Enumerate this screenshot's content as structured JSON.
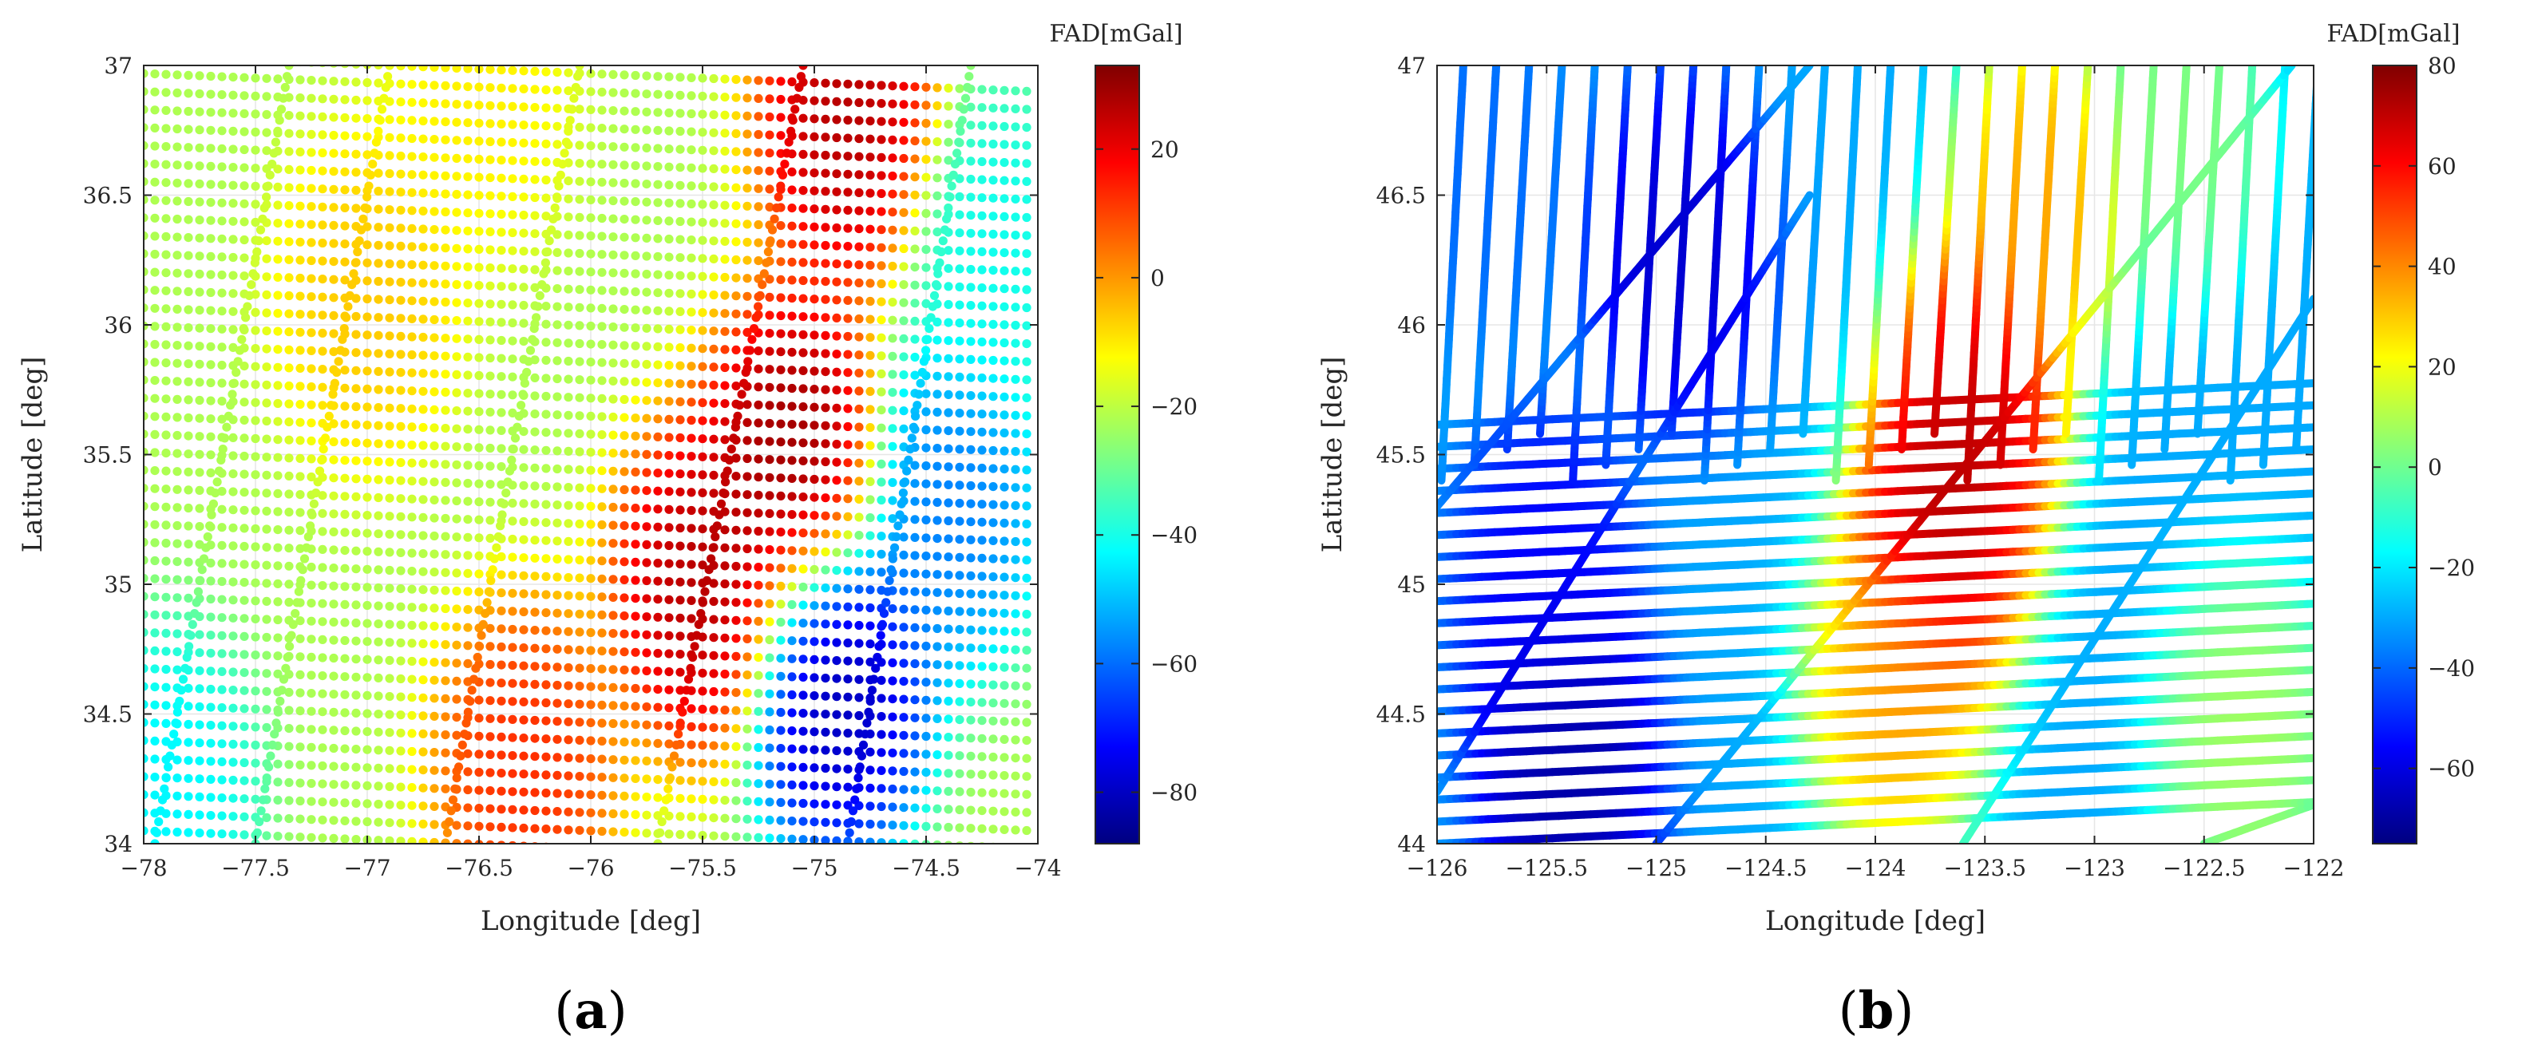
{
  "figure": {
    "panel_labels": [
      {
        "open": "(",
        "letter": "a",
        "close": ")"
      },
      {
        "open": "(",
        "letter": "b",
        "close": ")"
      }
    ]
  },
  "colormap": "jet",
  "chart_data": [
    {
      "type": "scatter",
      "panel": "a",
      "xlabel": "Longitude [deg]",
      "ylabel": "Latitude [deg]",
      "colorbar_label": "FAD[mGal]",
      "xlim": [
        -78,
        -74
      ],
      "ylim": [
        34,
        37
      ],
      "xticks": [
        -78,
        -77.5,
        -77,
        -76.5,
        -76,
        -75.5,
        -75,
        -74.5,
        -74
      ],
      "xtick_labels": [
        "−78",
        "−77.5",
        "−77",
        "−76.5",
        "−76",
        "−75.5",
        "−75",
        "−74.5",
        "−74"
      ],
      "yticks": [
        34,
        34.5,
        35,
        35.5,
        36,
        36.5,
        37
      ],
      "ytick_labels": [
        "34",
        "34.5",
        "35",
        "35.5",
        "36",
        "36.5",
        "37"
      ],
      "clim": [
        -88,
        33
      ],
      "cticks": [
        -80,
        -60,
        -40,
        -20,
        0,
        20
      ],
      "ctick_labels": [
        "−80",
        "−60",
        "−40",
        "−20",
        "0",
        "20"
      ],
      "grid": true,
      "tracks": {
        "east_west": {
          "count": 44,
          "lon_range": [
            -78,
            -74.05
          ],
          "lat_start_west": 34.05,
          "lat_step": 0.0695,
          "slope_deg_per_deg": -0.035
        },
        "north_south": [
          {
            "lon_south": -77.5,
            "lon_north": -76.9
          },
          {
            "lon_south": -76.65,
            "lon_north": -76.05
          },
          {
            "lon_south": -75.7,
            "lon_north": -75.05
          },
          {
            "lon_south": -74.85,
            "lon_north": -74.3
          },
          {
            "lon_south": -77.95,
            "lon_north": -77.35
          }
        ]
      },
      "anomalies": [
        {
          "lon": -75.1,
          "lat": 35.5,
          "value": 33
        },
        {
          "lon": -75.5,
          "lat": 35.0,
          "value": 30
        },
        {
          "lon": -74.85,
          "lat": 36.8,
          "value": 30
        },
        {
          "lon": -76.3,
          "lat": 34.3,
          "value": 15
        },
        {
          "lon": -77.0,
          "lat": 36.1,
          "value": -5
        },
        {
          "lon": -74.9,
          "lat": 34.6,
          "value": -85
        },
        {
          "lon": -74.4,
          "lat": 35.3,
          "value": -60
        },
        {
          "lon": -77.9,
          "lat": 34.2,
          "value": -45
        },
        {
          "lon": -76.5,
          "lat": 36.9,
          "value": -10
        },
        {
          "lon": -74.2,
          "lat": 36.3,
          "value": -42
        }
      ],
      "background_value": -22
    },
    {
      "type": "scatter",
      "panel": "b",
      "xlabel": "Longitude [deg]",
      "ylabel": "Latitude [deg]",
      "colorbar_label": "FAD[mGal]",
      "xlim": [
        -126,
        -122
      ],
      "ylim": [
        44,
        47
      ],
      "xticks": [
        -126,
        -125.5,
        -125,
        -124.5,
        -124,
        -123.5,
        -123,
        -122.5,
        -122
      ],
      "xtick_labels": [
        "−126",
        "−125.5",
        "−125",
        "−124.5",
        "−124",
        "−123.5",
        "−123",
        "−122.5",
        "−122"
      ],
      "yticks": [
        44,
        44.5,
        45,
        45.5,
        46,
        46.5,
        47
      ],
      "ytick_labels": [
        "44",
        "44.5",
        "45",
        "45.5",
        "46",
        "46.5",
        "47"
      ],
      "clim": [
        -75,
        80
      ],
      "cticks": [
        -60,
        -40,
        -20,
        0,
        20,
        40,
        60,
        80
      ],
      "ctick_labels": [
        "−60",
        "−40",
        "−20",
        "0",
        "20",
        "40",
        "60",
        "80"
      ],
      "grid": true,
      "tracks": {
        "east_west": {
          "count": 20,
          "lon_range": [
            -126,
            -122
          ],
          "lat_start_west": 44.0,
          "lat_step": 0.085,
          "slope_deg_per_deg": 0.04
        },
        "north_south_lat_range": [
          45.4,
          47
        ],
        "north_south_lons": [
          -126,
          -125.85,
          -125.7,
          -125.55,
          -125.4,
          -125.25,
          -125.1,
          -124.95,
          -124.8,
          -124.65,
          -124.5,
          -124.35,
          -124.2,
          -124.05,
          -123.9,
          -123.75,
          -123.6,
          -123.45,
          -123.3,
          -123.15,
          -123.0,
          -122.85,
          -122.7,
          -122.55,
          -122.4,
          -122.25,
          -122.1
        ],
        "diagonals": [
          {
            "lon1": -126,
            "lat1": 44.2,
            "lon2": -124.3,
            "lat2": 46.5
          },
          {
            "lon1": -125,
            "lat1": 44.0,
            "lon2": -122.1,
            "lat2": 47.0
          },
          {
            "lon1": -123.6,
            "lat1": 44.0,
            "lon2": -122,
            "lat2": 46.1
          },
          {
            "lon1": -126,
            "lat1": 45.3,
            "lon2": -124.3,
            "lat2": 47.0
          },
          {
            "lon1": -122.5,
            "lat1": 44.0,
            "lon2": -122,
            "lat2": 44.15
          }
        ]
      },
      "anomalies": [
        {
          "lon": -123.7,
          "lat": 45.2,
          "value": 78
        },
        {
          "lon": -123.55,
          "lat": 45.7,
          "value": 75
        },
        {
          "lon": -123.9,
          "lat": 44.6,
          "value": 40
        },
        {
          "lon": -123.25,
          "lat": 46.5,
          "value": 40
        },
        {
          "lon": -125.4,
          "lat": 44.3,
          "value": -72
        },
        {
          "lon": -124.9,
          "lat": 46.3,
          "value": -65
        },
        {
          "lon": -125.5,
          "lat": 45.0,
          "value": -58
        },
        {
          "lon": -122.3,
          "lat": 44.4,
          "value": 10
        },
        {
          "lon": -122.6,
          "lat": 46.8,
          "value": 5
        },
        {
          "lon": -125.8,
          "lat": 46.6,
          "value": -40
        }
      ],
      "background_value": -30
    }
  ]
}
